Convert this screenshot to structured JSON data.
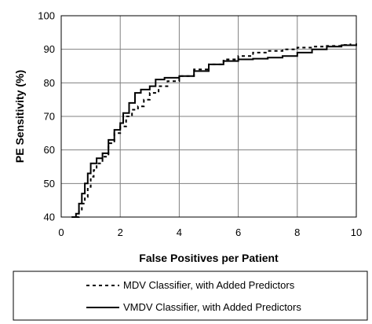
{
  "chart_data": {
    "type": "line",
    "title": "",
    "xlabel": "False Positives per Patient",
    "ylabel": "PE Sensitivity (%)",
    "xlim": [
      0,
      10
    ],
    "ylim": [
      40,
      100
    ],
    "x_ticks": [
      "0",
      "2",
      "4",
      "6",
      "8",
      "10"
    ],
    "y_ticks": [
      "40",
      "50",
      "60",
      "70",
      "80",
      "90",
      "100"
    ],
    "grid": true,
    "legend_position": "below",
    "series": [
      {
        "name": "MDV Classifier, with Added Predictors",
        "style": "dashed",
        "color": "#000000",
        "x": [
          0.5,
          0.6,
          0.7,
          0.8,
          0.9,
          1.0,
          1.1,
          1.2,
          1.4,
          1.6,
          1.8,
          2.0,
          2.2,
          2.4,
          2.6,
          2.8,
          3.0,
          3.3,
          3.6,
          4.0,
          4.5,
          5.0,
          5.5,
          6.0,
          6.5,
          7.0,
          7.5,
          8.0,
          8.5,
          9.0,
          9.5,
          9.8
        ],
        "y": [
          40,
          42,
          44,
          46,
          49,
          52,
          54,
          56,
          58,
          62,
          65,
          67,
          70,
          72,
          73,
          75,
          77,
          79,
          80.5,
          82,
          84,
          85.5,
          87,
          88,
          89,
          89.5,
          90,
          90.5,
          90.8,
          91,
          91.3,
          91.7
        ]
      },
      {
        "name": "VMDV Classifier, with Added Predictors",
        "style": "solid",
        "color": "#000000",
        "x": [
          0.35,
          0.5,
          0.6,
          0.7,
          0.8,
          0.9,
          1.0,
          1.2,
          1.4,
          1.6,
          1.8,
          2.0,
          2.1,
          2.3,
          2.5,
          2.7,
          3.0,
          3.2,
          3.5,
          4.0,
          4.5,
          5.0,
          5.5,
          6.0,
          6.5,
          7.0,
          7.5,
          8.0,
          8.5,
          9.0,
          9.5,
          10.0
        ],
        "y": [
          40,
          41,
          44,
          47,
          50,
          53,
          56,
          57.5,
          59,
          63,
          66,
          68,
          71,
          74,
          77,
          78,
          79,
          81,
          81.5,
          82,
          83.5,
          85.5,
          86.5,
          87,
          87.2,
          87.5,
          88,
          89,
          90,
          90.8,
          91.2,
          91.7
        ]
      }
    ]
  }
}
